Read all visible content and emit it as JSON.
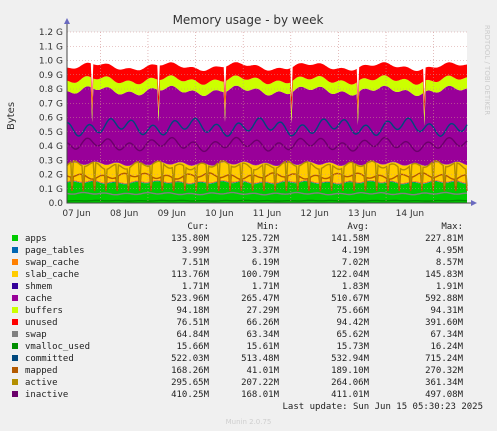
{
  "chart_data": {
    "type": "area",
    "title": "Memory usage - by week",
    "ylabel": "Bytes",
    "side_label": "RRDTOOL / TOBI OETIKER",
    "ylim": [
      0,
      1.2
    ],
    "y_ticks": [
      "0.0",
      "0.1 G",
      "0.2 G",
      "0.3 G",
      "0.4 G",
      "0.5 G",
      "0.6 G",
      "0.7 G",
      "0.8 G",
      "0.9 G",
      "1.0 G",
      "1.1 G",
      "1.2 G"
    ],
    "x_ticks": [
      "07 Jun",
      "08 Jun",
      "09 Jun",
      "10 Jun",
      "11 Jun",
      "12 Jun",
      "13 Jun",
      "14 Jun"
    ],
    "grid": true,
    "columns": [
      "Cur:",
      "Min:",
      "Avg:",
      "Max:"
    ],
    "series": [
      {
        "name": "apps",
        "color": "#00cc00",
        "cur": "135.80M",
        "min": "125.72M",
        "avg": "141.58M",
        "max": "227.81M"
      },
      {
        "name": "page_tables",
        "color": "#0066b3",
        "cur": "3.99M",
        "min": "3.37M",
        "avg": "4.19M",
        "max": "4.95M"
      },
      {
        "name": "swap_cache",
        "color": "#ff8000",
        "cur": "7.51M",
        "min": "6.19M",
        "avg": "7.02M",
        "max": "8.57M"
      },
      {
        "name": "slab_cache",
        "color": "#ffcc00",
        "cur": "113.76M",
        "min": "100.79M",
        "avg": "122.04M",
        "max": "145.83M"
      },
      {
        "name": "shmem",
        "color": "#330099",
        "cur": "1.71M",
        "min": "1.71M",
        "avg": "1.83M",
        "max": "1.91M"
      },
      {
        "name": "cache",
        "color": "#990099",
        "cur": "523.96M",
        "min": "265.47M",
        "avg": "510.67M",
        "max": "592.88M"
      },
      {
        "name": "buffers",
        "color": "#ccff00",
        "cur": "94.18M",
        "min": "27.29M",
        "avg": "75.66M",
        "max": "94.31M"
      },
      {
        "name": "unused",
        "color": "#ff0000",
        "cur": "76.51M",
        "min": "66.26M",
        "avg": "94.42M",
        "max": "391.60M"
      },
      {
        "name": "swap",
        "color": "#808080",
        "cur": "64.84M",
        "min": "63.34M",
        "avg": "65.62M",
        "max": "67.34M"
      },
      {
        "name": "vmalloc_used",
        "color": "#008f00",
        "cur": "15.66M",
        "min": "15.61M",
        "avg": "15.73M",
        "max": "16.24M"
      },
      {
        "name": "committed",
        "color": "#00487d",
        "cur": "522.03M",
        "min": "513.48M",
        "avg": "532.94M",
        "max": "715.24M"
      },
      {
        "name": "mapped",
        "color": "#b35a00",
        "cur": "168.26M",
        "min": "41.01M",
        "avg": "189.10M",
        "max": "270.32M"
      },
      {
        "name": "active",
        "color": "#b38f00",
        "cur": "295.65M",
        "min": "207.22M",
        "avg": "264.06M",
        "max": "361.34M"
      },
      {
        "name": "inactive",
        "color": "#6b006b",
        "cur": "410.25M",
        "min": "168.01M",
        "avg": "411.01M",
        "max": "497.08M"
      }
    ]
  },
  "last_update": "Last update: Sun Jun 15 05:30:23 2025",
  "footer": "Munin 2.0.75"
}
